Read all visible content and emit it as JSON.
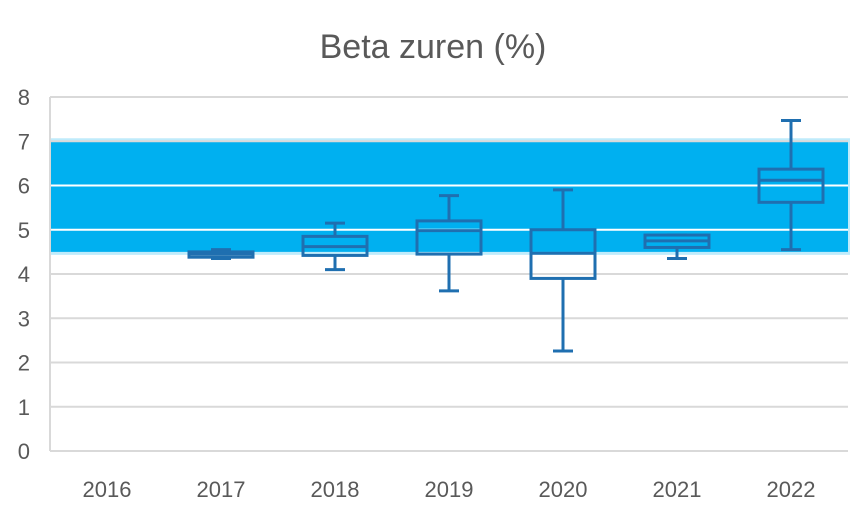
{
  "chart_data": {
    "type": "box",
    "title": "Beta zuren (%)",
    "xlabel": "",
    "ylabel": "",
    "ylim": [
      0,
      8
    ],
    "yticks": [
      "0",
      "1",
      "2",
      "3",
      "4",
      "5",
      "6",
      "7",
      "8"
    ],
    "categories": [
      "2016",
      "2017",
      "2018",
      "2019",
      "2020",
      "2021",
      "2022"
    ],
    "grid": true,
    "legend": "none",
    "target_band": {
      "low": 4.5,
      "high": 7.0,
      "color": "#00B0F0"
    },
    "box_color": "#1F6FB0",
    "boxes": [
      null,
      {
        "min": 4.35,
        "q1": 4.38,
        "median": 4.45,
        "q3": 4.5,
        "max": 4.55
      },
      {
        "min": 4.1,
        "q1": 4.42,
        "median": 4.62,
        "q3": 4.85,
        "max": 5.15
      },
      {
        "min": 3.62,
        "q1": 4.45,
        "median": 4.98,
        "q3": 5.2,
        "max": 5.77
      },
      {
        "min": 2.26,
        "q1": 3.9,
        "median": 4.47,
        "q3": 5.0,
        "max": 5.9
      },
      {
        "min": 4.35,
        "q1": 4.6,
        "median": 4.75,
        "q3": 4.88,
        "max": 4.88
      },
      {
        "min": 4.55,
        "q1": 5.62,
        "median": 6.12,
        "q3": 6.37,
        "max": 7.47
      }
    ]
  }
}
